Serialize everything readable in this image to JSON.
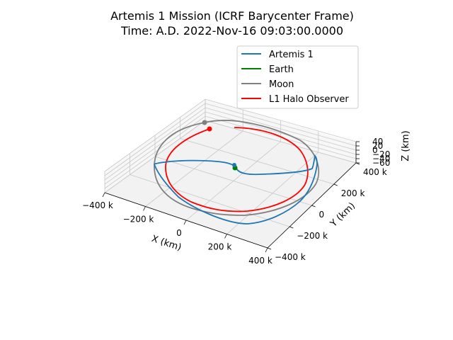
{
  "chart_data": {
    "type": "line",
    "title_line1": "Artemis 1 Mission (ICRF Barycenter Frame)",
    "title_line2": "Time:  A.D. 2022-Nov-16 09:03:00.0000",
    "xlabel": "X (km)",
    "ylabel": "Y (km)",
    "zlabel": "Z (km)",
    "xlim": [
      -400,
      400
    ],
    "ylim": [
      -400,
      400
    ],
    "zlim": [
      -60,
      40
    ],
    "x_ticks": [
      "−400 k",
      "−200 k",
      "0",
      "200 k",
      "400 k"
    ],
    "y_ticks": [
      "−400 k",
      "−200 k",
      "0",
      "200 k",
      "400 k"
    ],
    "z_ticks": [
      "40",
      "20",
      "0",
      "−20",
      "−40",
      "−60"
    ],
    "legend_position": "top-right",
    "series": [
      {
        "name": "Artemis 1",
        "color": "#1f77b4"
      },
      {
        "name": "Earth",
        "color": "#008000"
      },
      {
        "name": "Moon",
        "color": "#808080"
      },
      {
        "name": "L1 Halo Observer",
        "color": "#ff0000"
      }
    ]
  }
}
